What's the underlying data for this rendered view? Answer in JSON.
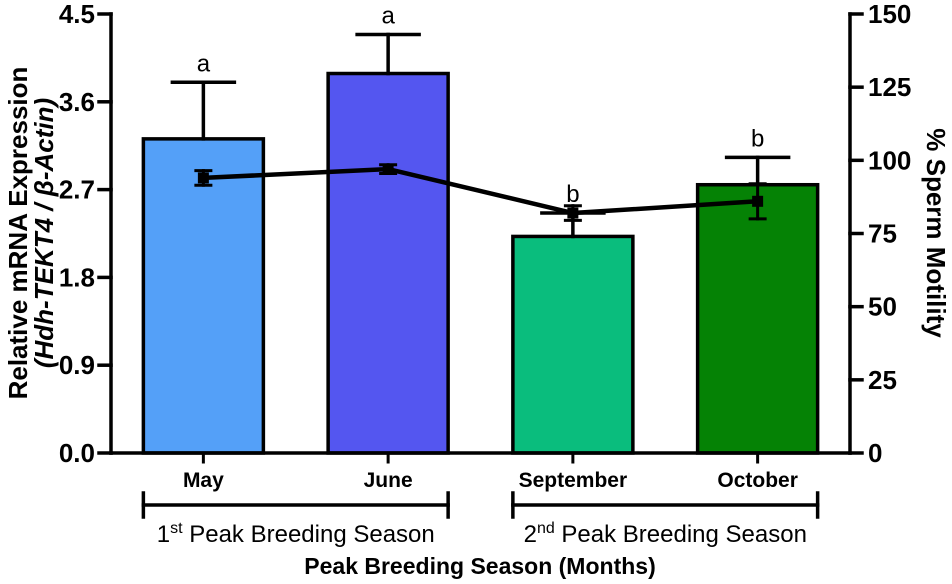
{
  "figure": {
    "background": "#ffffff",
    "axis_color": "#000000"
  },
  "chart_data": {
    "type": "bar+line",
    "categories": [
      "May",
      "June",
      "September",
      "October"
    ],
    "x_axis": {
      "title": "Peak Breeding Season (Months)"
    },
    "left_axis": {
      "title_line1": "Relative mRNA Expression",
      "title_line2": "(Hdh-TEKT4 / β-Actin)",
      "ticks": [
        "0.0",
        "0.9",
        "1.8",
        "2.7",
        "3.6",
        "4.5"
      ],
      "range": [
        0,
        4.5
      ]
    },
    "right_axis": {
      "title": "% Sperm Motility",
      "ticks": [
        "0",
        "25",
        "50",
        "75",
        "100",
        "125",
        "150"
      ],
      "range": [
        0,
        150
      ]
    },
    "series": [
      {
        "name": "Relative mRNA Expression (Hdh-TEKT4 / β-Actin)",
        "type": "bar",
        "axis": "left",
        "values": [
          3.22,
          3.89,
          2.22,
          2.75
        ],
        "errors": [
          0.58,
          0.4,
          0.24,
          0.28
        ],
        "significance_letters": [
          "a",
          "a",
          "b",
          "b"
        ],
        "bar_colors": [
          "#54A0F8",
          "#5456F0",
          "#0ABD7D",
          "#058205"
        ],
        "bar_border_color": "#000000"
      },
      {
        "name": "% Sperm Motility",
        "type": "line",
        "axis": "right",
        "values": [
          94,
          97,
          82,
          86
        ],
        "errors": [
          2.5,
          1.5,
          2.5,
          6
        ],
        "color": "#000000",
        "marker": "square"
      }
    ],
    "group_brackets": [
      {
        "num": "1",
        "sup": "st",
        "rest": " Peak Breeding Season",
        "from": 0,
        "to": 1
      },
      {
        "num": "2",
        "sup": "nd",
        "rest": " Peak Breeding Season",
        "from": 2,
        "to": 3
      }
    ]
  }
}
